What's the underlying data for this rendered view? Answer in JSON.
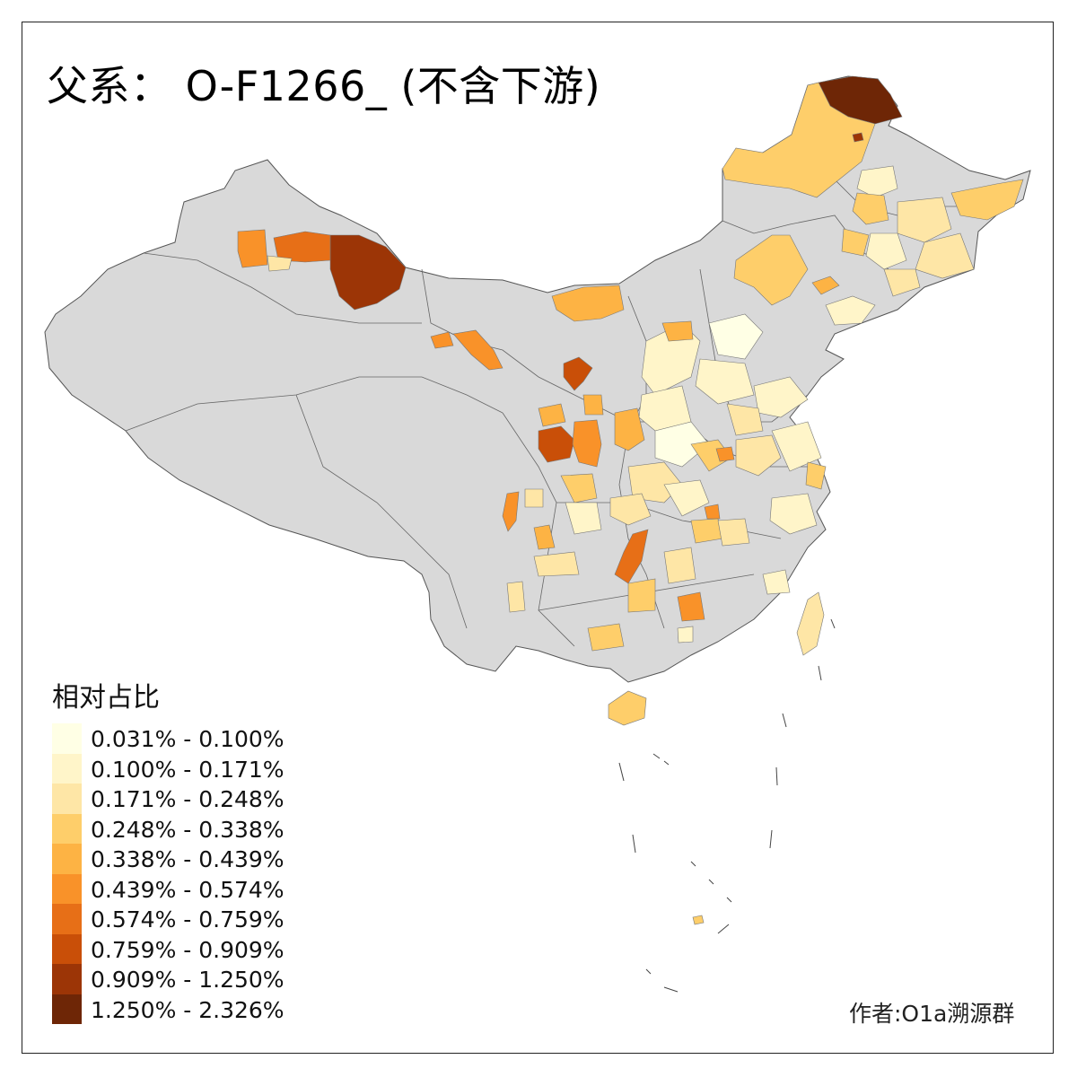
{
  "title": "父系： O-F1266_ (不含下游)",
  "legend": {
    "title": "相对占比",
    "items": [
      {
        "label": "0.031% - 0.100%",
        "color": "#ffffe5"
      },
      {
        "label": "0.100% - 0.171%",
        "color": "#fff5c9"
      },
      {
        "label": "0.171% - 0.248%",
        "color": "#fee6a6"
      },
      {
        "label": "0.248% - 0.338%",
        "color": "#fece6a"
      },
      {
        "label": "0.338% - 0.439%",
        "color": "#fdb344"
      },
      {
        "label": "0.439% - 0.574%",
        "color": "#f99229"
      },
      {
        "label": "0.574% - 0.759%",
        "color": "#e76f17"
      },
      {
        "label": "0.759% - 0.909%",
        "color": "#c94f08"
      },
      {
        "label": "0.909% - 1.250%",
        "color": "#9c3506"
      },
      {
        "label": "1.250% - 2.326%",
        "color": "#6e2606"
      }
    ]
  },
  "credit": "作者:O1a溯源群",
  "map": {
    "no_data_color": "#d9d9d9",
    "border_color": "#555555"
  }
}
